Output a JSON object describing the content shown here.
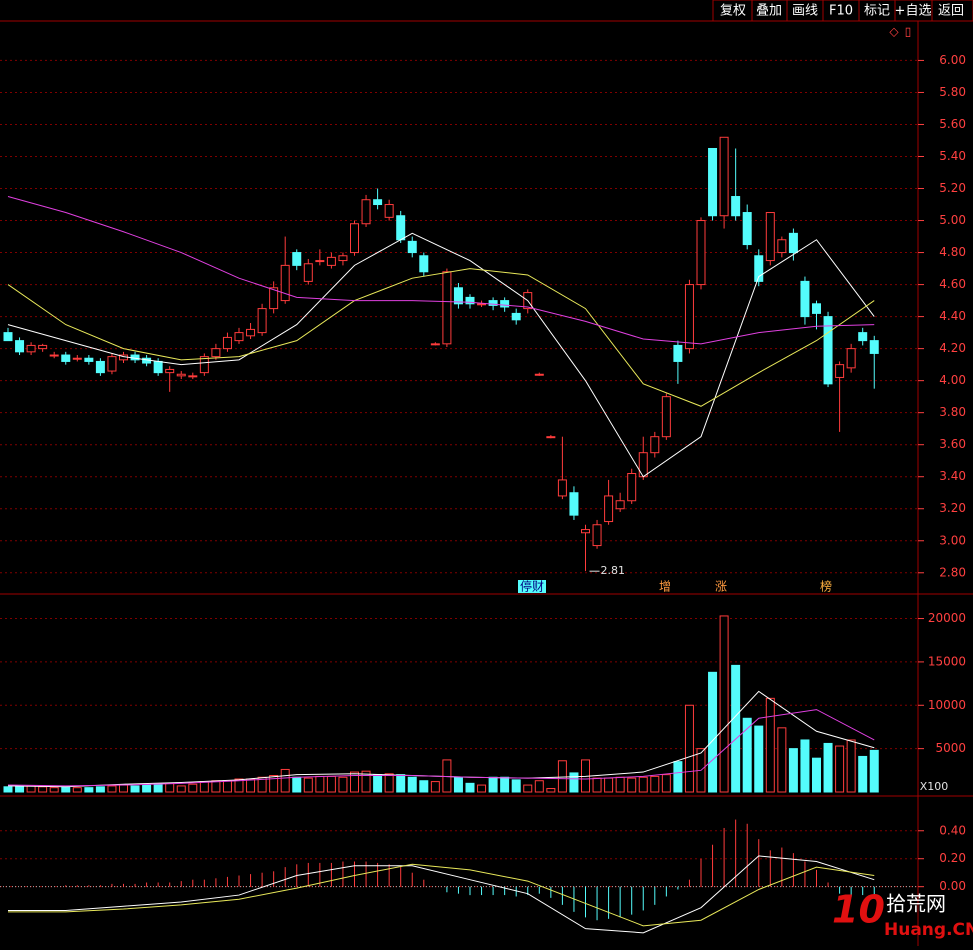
{
  "toolbar": [
    "复权",
    "叠加",
    "画线",
    "F10",
    "标记",
    "+自选",
    "返回"
  ],
  "icons": [
    "◇",
    "▯"
  ],
  "markers": [
    "停财",
    "增",
    "涨",
    "榜"
  ],
  "watermark": {
    "logo": "10",
    "cn": "拾荒网",
    "url": "Huang.CN"
  },
  "chart_data": [
    {
      "type": "candlestick",
      "open": [
        4.3,
        4.25,
        4.18,
        4.2,
        4.16,
        4.16,
        4.14,
        4.14,
        4.12,
        4.06,
        4.13,
        4.16,
        4.14,
        4.12,
        4.05,
        4.03,
        4.03,
        4.05,
        4.15,
        4.2,
        4.25,
        4.28,
        4.3,
        4.45,
        4.5,
        4.8,
        4.62,
        4.75,
        4.72,
        4.75,
        4.8,
        4.98,
        5.13,
        5.02,
        5.03,
        4.87,
        4.78,
        4.23,
        4.23,
        4.58,
        4.52,
        4.48,
        4.5,
        4.5,
        4.42,
        4.45,
        4.04,
        3.65,
        3.28,
        3.3,
        3.05,
        2.97,
        3.12,
        3.2,
        3.25,
        3.4,
        3.55,
        3.65,
        4.22,
        4.2,
        4.6,
        5.45,
        5.03,
        5.15,
        5.05,
        4.78,
        4.75,
        4.8,
        4.92,
        4.62,
        4.48,
        4.4,
        4.02,
        4.08,
        4.3,
        4.25
      ],
      "high": [
        4.33,
        4.27,
        4.24,
        4.23,
        4.18,
        4.18,
        4.16,
        4.16,
        4.14,
        4.17,
        4.18,
        4.18,
        4.16,
        4.14,
        4.09,
        4.06,
        4.05,
        4.17,
        4.23,
        4.3,
        4.33,
        4.36,
        4.48,
        4.62,
        4.9,
        4.82,
        4.76,
        4.82,
        4.8,
        4.8,
        5.0,
        5.16,
        5.2,
        5.13,
        5.06,
        4.9,
        4.8,
        4.24,
        4.7,
        4.61,
        4.54,
        4.5,
        4.52,
        4.52,
        4.45,
        4.57,
        4.05,
        3.66,
        3.65,
        3.34,
        3.1,
        3.13,
        3.38,
        3.3,
        3.45,
        3.65,
        3.68,
        3.92,
        4.25,
        4.63,
        5.02,
        5.45,
        5.52,
        5.45,
        5.1,
        4.82,
        5.05,
        4.9,
        4.95,
        4.65,
        4.5,
        4.43,
        4.12,
        4.23,
        4.33,
        4.28
      ],
      "low": [
        4.27,
        4.16,
        4.16,
        4.18,
        4.14,
        4.1,
        4.12,
        4.1,
        4.03,
        4.04,
        4.11,
        4.11,
        4.09,
        4.03,
        3.93,
        4.01,
        4.01,
        4.03,
        4.13,
        4.18,
        4.23,
        4.26,
        4.28,
        4.42,
        4.48,
        4.69,
        4.6,
        4.72,
        4.7,
        4.72,
        4.78,
        4.96,
        5.07,
        5.0,
        4.86,
        4.77,
        4.65,
        4.22,
        4.21,
        4.45,
        4.45,
        4.46,
        4.44,
        4.43,
        4.35,
        4.42,
        4.03,
        3.64,
        3.26,
        3.13,
        2.81,
        2.95,
        3.1,
        3.18,
        3.23,
        3.38,
        3.52,
        3.63,
        3.98,
        4.17,
        4.57,
        5.0,
        4.95,
        5.0,
        4.82,
        4.59,
        4.72,
        4.77,
        4.75,
        4.35,
        4.32,
        3.96,
        3.68,
        4.05,
        4.22,
        3.95
      ],
      "close": [
        4.25,
        4.18,
        4.22,
        4.22,
        4.16,
        4.12,
        4.14,
        4.12,
        4.05,
        4.15,
        4.16,
        4.13,
        4.11,
        4.05,
        4.07,
        4.04,
        4.03,
        4.15,
        4.2,
        4.27,
        4.3,
        4.32,
        4.45,
        4.58,
        4.72,
        4.72,
        4.73,
        4.75,
        4.77,
        4.78,
        4.98,
        5.13,
        5.1,
        5.1,
        4.88,
        4.8,
        4.68,
        4.23,
        4.68,
        4.48,
        4.48,
        4.48,
        4.47,
        4.46,
        4.38,
        4.55,
        4.04,
        3.65,
        3.38,
        3.16,
        3.07,
        3.1,
        3.28,
        3.25,
        3.42,
        3.55,
        3.65,
        3.9,
        4.12,
        4.6,
        5.0,
        5.03,
        5.52,
        5.03,
        4.85,
        4.62,
        5.05,
        4.88,
        4.8,
        4.4,
        4.42,
        3.98,
        4.1,
        4.2,
        4.25,
        4.17
      ],
      "up_color": "#ff3c3c",
      "down_color": "#54fcfc",
      "lines": [
        {
          "color": "#ffffff",
          "x": [
            0,
            5,
            10,
            15,
            20,
            25,
            30,
            35,
            40,
            45,
            50,
            55,
            60,
            65,
            70,
            75
          ],
          "values": [
            4.35,
            4.25,
            4.15,
            4.1,
            4.13,
            4.35,
            4.72,
            4.92,
            4.75,
            4.5,
            4.0,
            3.4,
            3.65,
            4.65,
            4.88,
            4.4
          ]
        },
        {
          "color": "#e8e85a",
          "x": [
            0,
            5,
            10,
            15,
            20,
            25,
            30,
            35,
            40,
            45,
            50,
            55,
            60,
            65,
            70,
            75
          ],
          "values": [
            4.6,
            4.35,
            4.2,
            4.13,
            4.15,
            4.25,
            4.5,
            4.64,
            4.7,
            4.66,
            4.45,
            3.98,
            3.84,
            4.05,
            4.25,
            4.5
          ]
        },
        {
          "color": "#e040e0",
          "x": [
            0,
            5,
            10,
            15,
            20,
            25,
            30,
            35,
            40,
            45,
            50,
            55,
            60,
            65,
            70,
            75
          ],
          "values": [
            5.15,
            5.05,
            4.93,
            4.8,
            4.64,
            4.52,
            4.5,
            4.5,
            4.49,
            4.46,
            4.37,
            4.26,
            4.23,
            4.3,
            4.34,
            4.35
          ]
        }
      ],
      "ylim": [
        2.68,
        6.24
      ],
      "yticks": [
        {
          "value": 2.8,
          "label": "2.80"
        },
        {
          "value": 3.0,
          "label": "3.00"
        },
        {
          "value": 3.2,
          "label": "3.20"
        },
        {
          "value": 3.4,
          "label": "3.40"
        },
        {
          "value": 3.6,
          "label": "3.60"
        },
        {
          "value": 3.8,
          "label": "3.80"
        },
        {
          "value": 4.0,
          "label": "4.00"
        },
        {
          "value": 4.2,
          "label": "4.20"
        },
        {
          "value": 4.4,
          "label": "4.40"
        },
        {
          "value": 4.6,
          "label": "4.60"
        },
        {
          "value": 4.8,
          "label": "4.80"
        },
        {
          "value": 5.0,
          "label": "5.00"
        },
        {
          "value": 5.2,
          "label": "5.20"
        },
        {
          "value": 5.4,
          "label": "5.40"
        },
        {
          "value": 5.6,
          "label": "5.60"
        },
        {
          "value": 5.8,
          "label": "5.80"
        },
        {
          "value": 6.0,
          "label": "6.00"
        }
      ],
      "grid": true
    },
    {
      "type": "bar",
      "values": [
        600,
        600,
        700,
        600,
        500,
        600,
        500,
        500,
        600,
        700,
        800,
        700,
        800,
        900,
        1000,
        700,
        900,
        1200,
        1300,
        1300,
        1500,
        1500,
        1700,
        1900,
        2600,
        1700,
        1600,
        1800,
        1800,
        1700,
        2300,
        2400,
        2000,
        2100,
        2000,
        1700,
        1300,
        1200,
        3700,
        1700,
        1000,
        800,
        1700,
        1700,
        1400,
        800,
        1300,
        400,
        3600,
        2200,
        3700,
        1600,
        1600,
        1700,
        1600,
        1700,
        1800,
        2000,
        3500,
        10000,
        5000,
        13800,
        20300,
        14600,
        8500,
        7600,
        10800,
        7400,
        5000,
        6000,
        3900,
        5600,
        5300,
        6000,
        4100,
        4800
      ],
      "lines": [
        {
          "color": "#ffffff",
          "x": [
            0,
            5,
            10,
            15,
            20,
            25,
            30,
            35,
            40,
            45,
            50,
            55,
            60,
            65,
            70,
            75
          ],
          "values": [
            700,
            600,
            900,
            1100,
            1400,
            2000,
            2100,
            1900,
            1700,
            1600,
            1800,
            2300,
            4500,
            11600,
            7000,
            5100
          ]
        },
        {
          "color": "#e040e0",
          "x": [
            0,
            5,
            10,
            15,
            20,
            25,
            30,
            35,
            40,
            45,
            50,
            55,
            60,
            65,
            70,
            75
          ],
          "values": [
            800,
            700,
            800,
            1000,
            1300,
            1700,
            1900,
            1900,
            1700,
            1600,
            1500,
            1800,
            2500,
            8500,
            9500,
            6000
          ]
        }
      ],
      "unit_label": "X100",
      "ylim": [
        0,
        22600
      ],
      "yticks": [
        5000,
        10000,
        15000,
        20000
      ],
      "grid": true
    },
    {
      "type": "bar",
      "values": [
        0,
        0,
        0,
        0,
        0,
        0.01,
        0.01,
        0.01,
        0.01,
        0.02,
        0.02,
        0.02,
        0.03,
        0.03,
        0.03,
        0.04,
        0.05,
        0.05,
        0.06,
        0.07,
        0.08,
        0.09,
        0.1,
        0.11,
        0.14,
        0.16,
        0.17,
        0.17,
        0.17,
        0.18,
        0.18,
        0.18,
        0.17,
        0.16,
        0.14,
        0.1,
        0.05,
        0.0,
        -0.04,
        -0.05,
        -0.06,
        -0.06,
        -0.06,
        -0.06,
        -0.07,
        -0.06,
        -0.05,
        -0.08,
        -0.13,
        -0.18,
        -0.22,
        -0.24,
        -0.23,
        -0.22,
        -0.2,
        -0.17,
        -0.13,
        -0.07,
        -0.02,
        0.05,
        0.2,
        0.3,
        0.42,
        0.48,
        0.45,
        0.34,
        0.26,
        0.28,
        0.24,
        0.18,
        0.12,
        0.03,
        -0.05,
        -0.07,
        -0.06,
        -0.06
      ],
      "lines": [
        {
          "color": "#ffffff",
          "x": [
            0,
            5,
            10,
            15,
            20,
            25,
            30,
            35,
            40,
            45,
            50,
            55,
            60,
            65,
            70,
            75
          ],
          "values": [
            -0.17,
            -0.17,
            -0.14,
            -0.11,
            -0.06,
            0.08,
            0.15,
            0.15,
            0.05,
            -0.05,
            -0.3,
            -0.33,
            -0.15,
            0.22,
            0.18,
            0.05
          ]
        },
        {
          "color": "#e8e85a",
          "x": [
            0,
            5,
            10,
            15,
            20,
            25,
            30,
            35,
            40,
            45,
            50,
            55,
            60,
            65,
            70,
            75
          ],
          "values": [
            -0.18,
            -0.18,
            -0.16,
            -0.13,
            -0.09,
            -0.01,
            0.08,
            0.16,
            0.12,
            0.04,
            -0.12,
            -0.28,
            -0.24,
            -0.02,
            0.14,
            0.08
          ]
        }
      ],
      "ylim": [
        -0.41,
        0.62
      ],
      "yticks": [
        {
          "value": 0,
          "label": "0.00"
        },
        {
          "value": 0.2,
          "label": "0.20"
        },
        {
          "value": 0.4,
          "label": "0.40"
        }
      ],
      "grid": true
    }
  ]
}
